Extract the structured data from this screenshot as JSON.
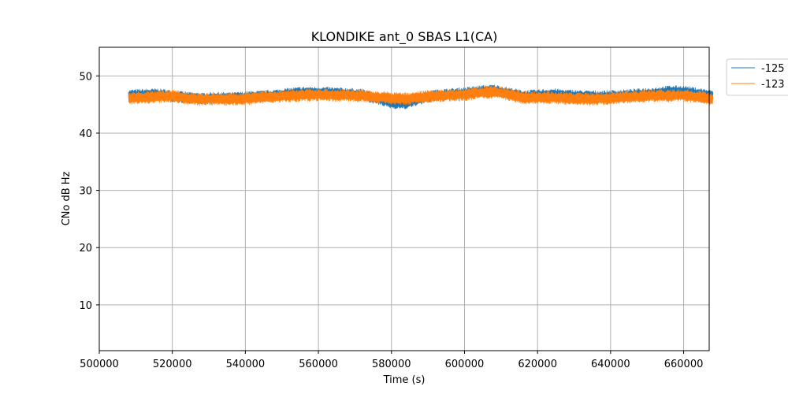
{
  "chart_data": {
    "type": "line",
    "title": "KLONDIKE ant_0 SBAS L1(CA)",
    "xlabel": "Time (s)",
    "ylabel": "CNo dB Hz",
    "xlim": [
      500000,
      667000
    ],
    "ylim": [
      2,
      55
    ],
    "xticks": [
      500000,
      520000,
      540000,
      560000,
      580000,
      600000,
      620000,
      640000,
      660000
    ],
    "yticks": [
      10,
      20,
      30,
      40,
      50
    ],
    "grid": true,
    "legend_position": "outside-top-right",
    "series": [
      {
        "name": "-125",
        "color": "#1f77b4",
        "x_range": [
          508000,
          668000
        ],
        "x": [
          508000,
          512000,
          516000,
          520000,
          524000,
          528000,
          532000,
          536000,
          540000,
          544000,
          548000,
          552000,
          556000,
          560000,
          564000,
          568000,
          572000,
          576000,
          580000,
          584000,
          588000,
          592000,
          596000,
          600000,
          604000,
          608000,
          612000,
          616000,
          620000,
          624000,
          628000,
          632000,
          636000,
          640000,
          644000,
          648000,
          652000,
          656000,
          660000,
          664000,
          668000
        ],
        "y": [
          46.6,
          46.7,
          46.8,
          46.5,
          46.2,
          46.0,
          46.2,
          46.1,
          46.3,
          46.4,
          46.6,
          46.9,
          47.1,
          47.1,
          47.0,
          46.9,
          46.7,
          46.0,
          45.3,
          45.2,
          46.0,
          46.6,
          46.8,
          47.0,
          47.3,
          47.5,
          47.0,
          46.5,
          46.6,
          46.8,
          46.6,
          46.5,
          46.4,
          46.5,
          46.6,
          46.8,
          47.0,
          47.3,
          47.3,
          46.9,
          46.5
        ],
        "band_halfwidth": 1.0
      },
      {
        "name": "-123",
        "color": "#ff7f0e",
        "x_range": [
          508000,
          668000
        ],
        "x": [
          508000,
          512000,
          516000,
          520000,
          524000,
          528000,
          532000,
          536000,
          540000,
          544000,
          548000,
          552000,
          556000,
          560000,
          564000,
          568000,
          572000,
          576000,
          580000,
          584000,
          588000,
          592000,
          596000,
          600000,
          604000,
          608000,
          612000,
          616000,
          620000,
          624000,
          628000,
          632000,
          636000,
          640000,
          644000,
          648000,
          652000,
          656000,
          660000,
          664000,
          668000
        ],
        "y": [
          46.1,
          46.2,
          46.4,
          46.5,
          46.1,
          45.9,
          46.0,
          45.9,
          46.0,
          46.2,
          46.4,
          46.5,
          46.6,
          46.7,
          46.6,
          46.6,
          46.5,
          46.3,
          46.1,
          46.0,
          46.3,
          46.5,
          46.6,
          46.7,
          47.0,
          47.2,
          46.8,
          46.2,
          46.2,
          46.2,
          46.1,
          46.0,
          45.9,
          46.1,
          46.3,
          46.4,
          46.5,
          46.5,
          46.6,
          46.3,
          46.0
        ],
        "band_halfwidth": 1.1
      }
    ]
  }
}
